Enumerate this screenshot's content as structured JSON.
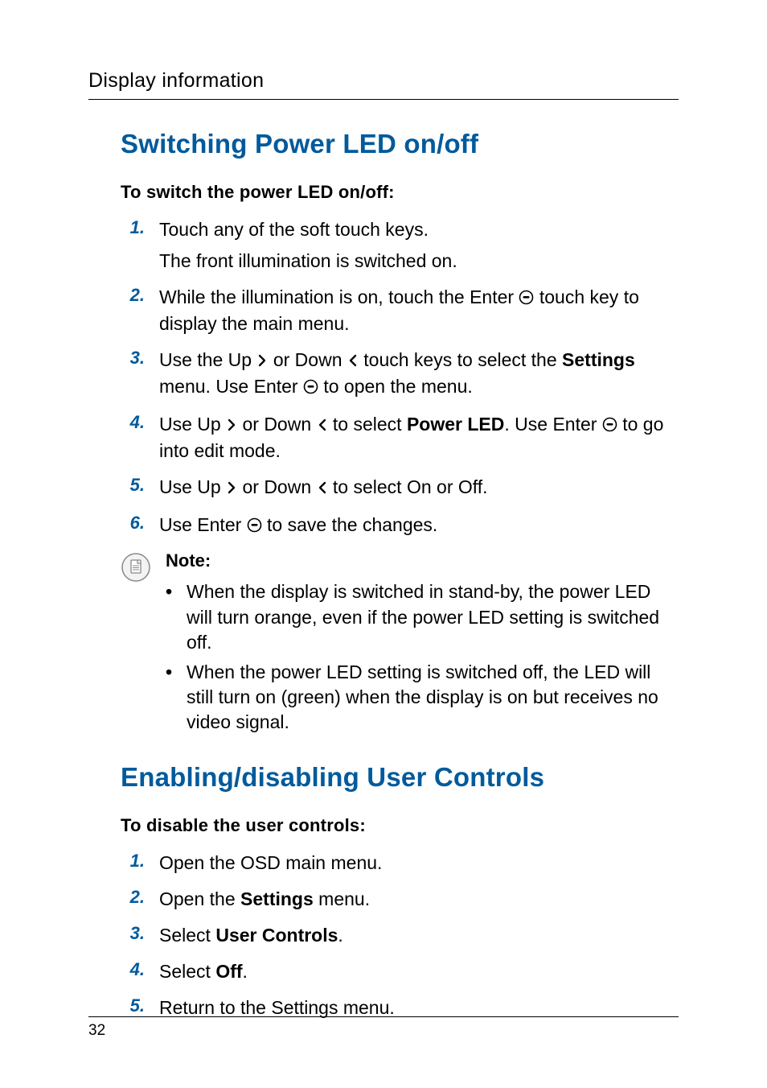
{
  "header": {
    "title": "Display information"
  },
  "section1": {
    "heading": "Switching Power LED on/off",
    "subheading": "To switch the power LED on/off:",
    "steps": [
      {
        "num": "1.",
        "html": "Touch any of the soft touch keys.",
        "para2": "The front illumination is switched on."
      },
      {
        "num": "2.",
        "html": "While the illumination is on, touch the Enter {{enter}} touch key to display the main menu."
      },
      {
        "num": "3.",
        "html": "Use the Up {{up}} or Down {{down}} touch keys to select the <span class='strong'>Settings</span> menu. Use Enter {{enter}} to open the menu."
      },
      {
        "num": "4.",
        "html": "Use Up {{up}} or Down {{down}} to select <span class='strong'>Power LED</span>. Use Enter {{enter}} to go into edit mode."
      },
      {
        "num": "5.",
        "html": "Use Up {{up}} or Down {{down}} to select On or Off."
      },
      {
        "num": "6.",
        "html": "Use Enter {{enter}} to save the changes."
      }
    ],
    "note": {
      "title": "Note:",
      "items": [
        "When the display is switched in stand-by, the power LED will turn orange, even if the power LED setting is switched off.",
        "When the power LED setting is switched off, the LED will still turn on (green) when the display is on but receives no video signal."
      ]
    }
  },
  "section2": {
    "heading": "Enabling/disabling User Controls",
    "subheading": "To disable the user controls:",
    "steps": [
      {
        "num": "1.",
        "html": "Open the OSD main menu."
      },
      {
        "num": "2.",
        "html": "Open the <span class='strong'>Settings</span> menu."
      },
      {
        "num": "3.",
        "html": "Select <span class='strong'>User Controls</span>."
      },
      {
        "num": "4.",
        "html": "Select <span class='strong'>Off</span>."
      },
      {
        "num": "5.",
        "html": "Return to the Settings menu."
      }
    ]
  },
  "footer": {
    "page": "32"
  },
  "colors": {
    "accent": "#005a9c",
    "text": "#000000",
    "bg": "#ffffff",
    "note_icon_stroke": "#888888",
    "note_icon_fill": "#f3f3f3"
  },
  "icons": {
    "enter": "enter-icon",
    "up": "chevron-right-icon",
    "down": "chevron-left-icon",
    "note": "note-page-icon"
  }
}
